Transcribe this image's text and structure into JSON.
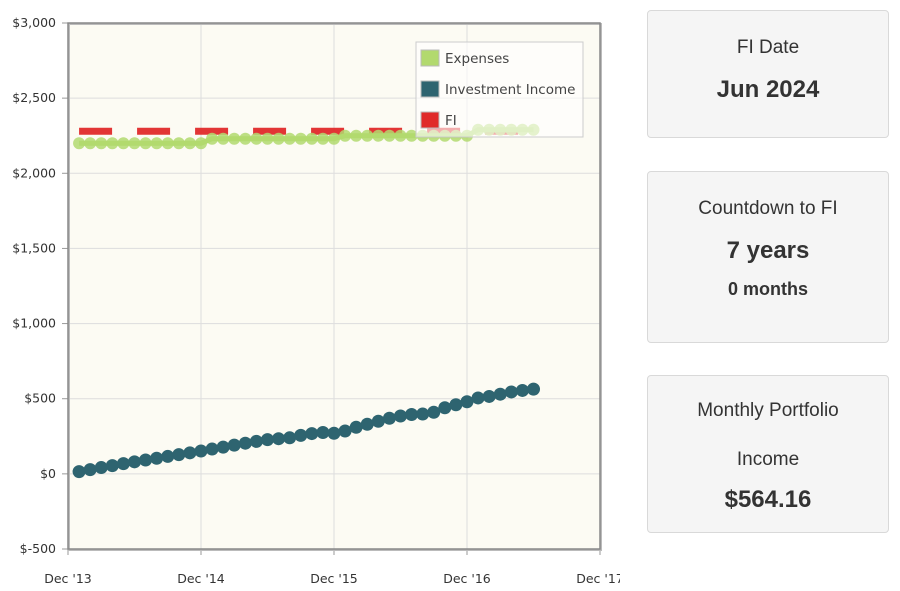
{
  "chart_data": {
    "type": "line",
    "x_ticks": [
      "Dec '13",
      "Dec '14",
      "Dec '15",
      "Dec '16",
      "Dec '17"
    ],
    "y_ticks": [
      "$3,000",
      "$2,500",
      "$2,000",
      "$1,500",
      "$1,000",
      "$500",
      "$0",
      "$-500"
    ],
    "ylim": [
      -500,
      3000
    ],
    "xlim": [
      "2013-12",
      "2017-12"
    ],
    "grid": true,
    "legend_position": "top-right",
    "x": [
      "2014-01",
      "2014-02",
      "2014-03",
      "2014-04",
      "2014-05",
      "2014-06",
      "2014-07",
      "2014-08",
      "2014-09",
      "2014-10",
      "2014-11",
      "2014-12",
      "2015-01",
      "2015-02",
      "2015-03",
      "2015-04",
      "2015-05",
      "2015-06",
      "2015-07",
      "2015-08",
      "2015-09",
      "2015-10",
      "2015-11",
      "2015-12",
      "2016-01",
      "2016-02",
      "2016-03",
      "2016-04",
      "2016-05",
      "2016-06",
      "2016-07",
      "2016-08",
      "2016-09",
      "2016-10",
      "2016-11",
      "2016-12",
      "2017-01",
      "2017-02",
      "2017-03",
      "2017-04",
      "2017-05",
      "2017-06"
    ],
    "series": [
      {
        "name": "Expenses",
        "color": "#b2d96e",
        "values": [
          2200,
          2200,
          2200,
          2200,
          2200,
          2200,
          2200,
          2200,
          2200,
          2200,
          2200,
          2200,
          2230,
          2230,
          2230,
          2230,
          2230,
          2230,
          2230,
          2230,
          2230,
          2230,
          2230,
          2230,
          2250,
          2250,
          2250,
          2250,
          2250,
          2250,
          2250,
          2250,
          2250,
          2250,
          2250,
          2250,
          2290,
          2290,
          2290,
          2290,
          2290,
          2290
        ]
      },
      {
        "name": "Investment Income",
        "color": "#2e6470",
        "values": [
          15,
          28,
          42,
          55,
          68,
          80,
          92,
          104,
          116,
          128,
          140,
          152,
          165,
          178,
          191,
          204,
          216,
          228,
          234,
          240,
          256,
          268,
          275,
          270,
          285,
          310,
          330,
          350,
          370,
          385,
          395,
          398,
          410,
          440,
          460,
          480,
          505,
          515,
          530,
          545,
          555,
          564
        ]
      },
      {
        "name": "FI",
        "color": "#e02a2a",
        "values": [
          2280,
          2280,
          2280,
          2280,
          2280,
          2280,
          2280,
          2280,
          2280,
          2280,
          2280,
          2280,
          2280,
          2280,
          2280,
          2280,
          2280,
          2280,
          2280,
          2280,
          2280,
          2280,
          2280,
          2280,
          2280,
          2280,
          2280,
          2280,
          2280,
          2280,
          2280,
          2280,
          2280,
          2280,
          2280,
          2280,
          2280,
          2280,
          2280,
          2280,
          2280,
          2280
        ]
      }
    ]
  },
  "stats": {
    "fi_date_label": "FI Date",
    "fi_date_value": "Jun 2024",
    "countdown_label": "Countdown to FI",
    "countdown_years": "7 years",
    "countdown_months": "0 months",
    "income_label_line1": "Monthly Portfolio",
    "income_label_line2": "Income",
    "income_value": "$564.16"
  }
}
